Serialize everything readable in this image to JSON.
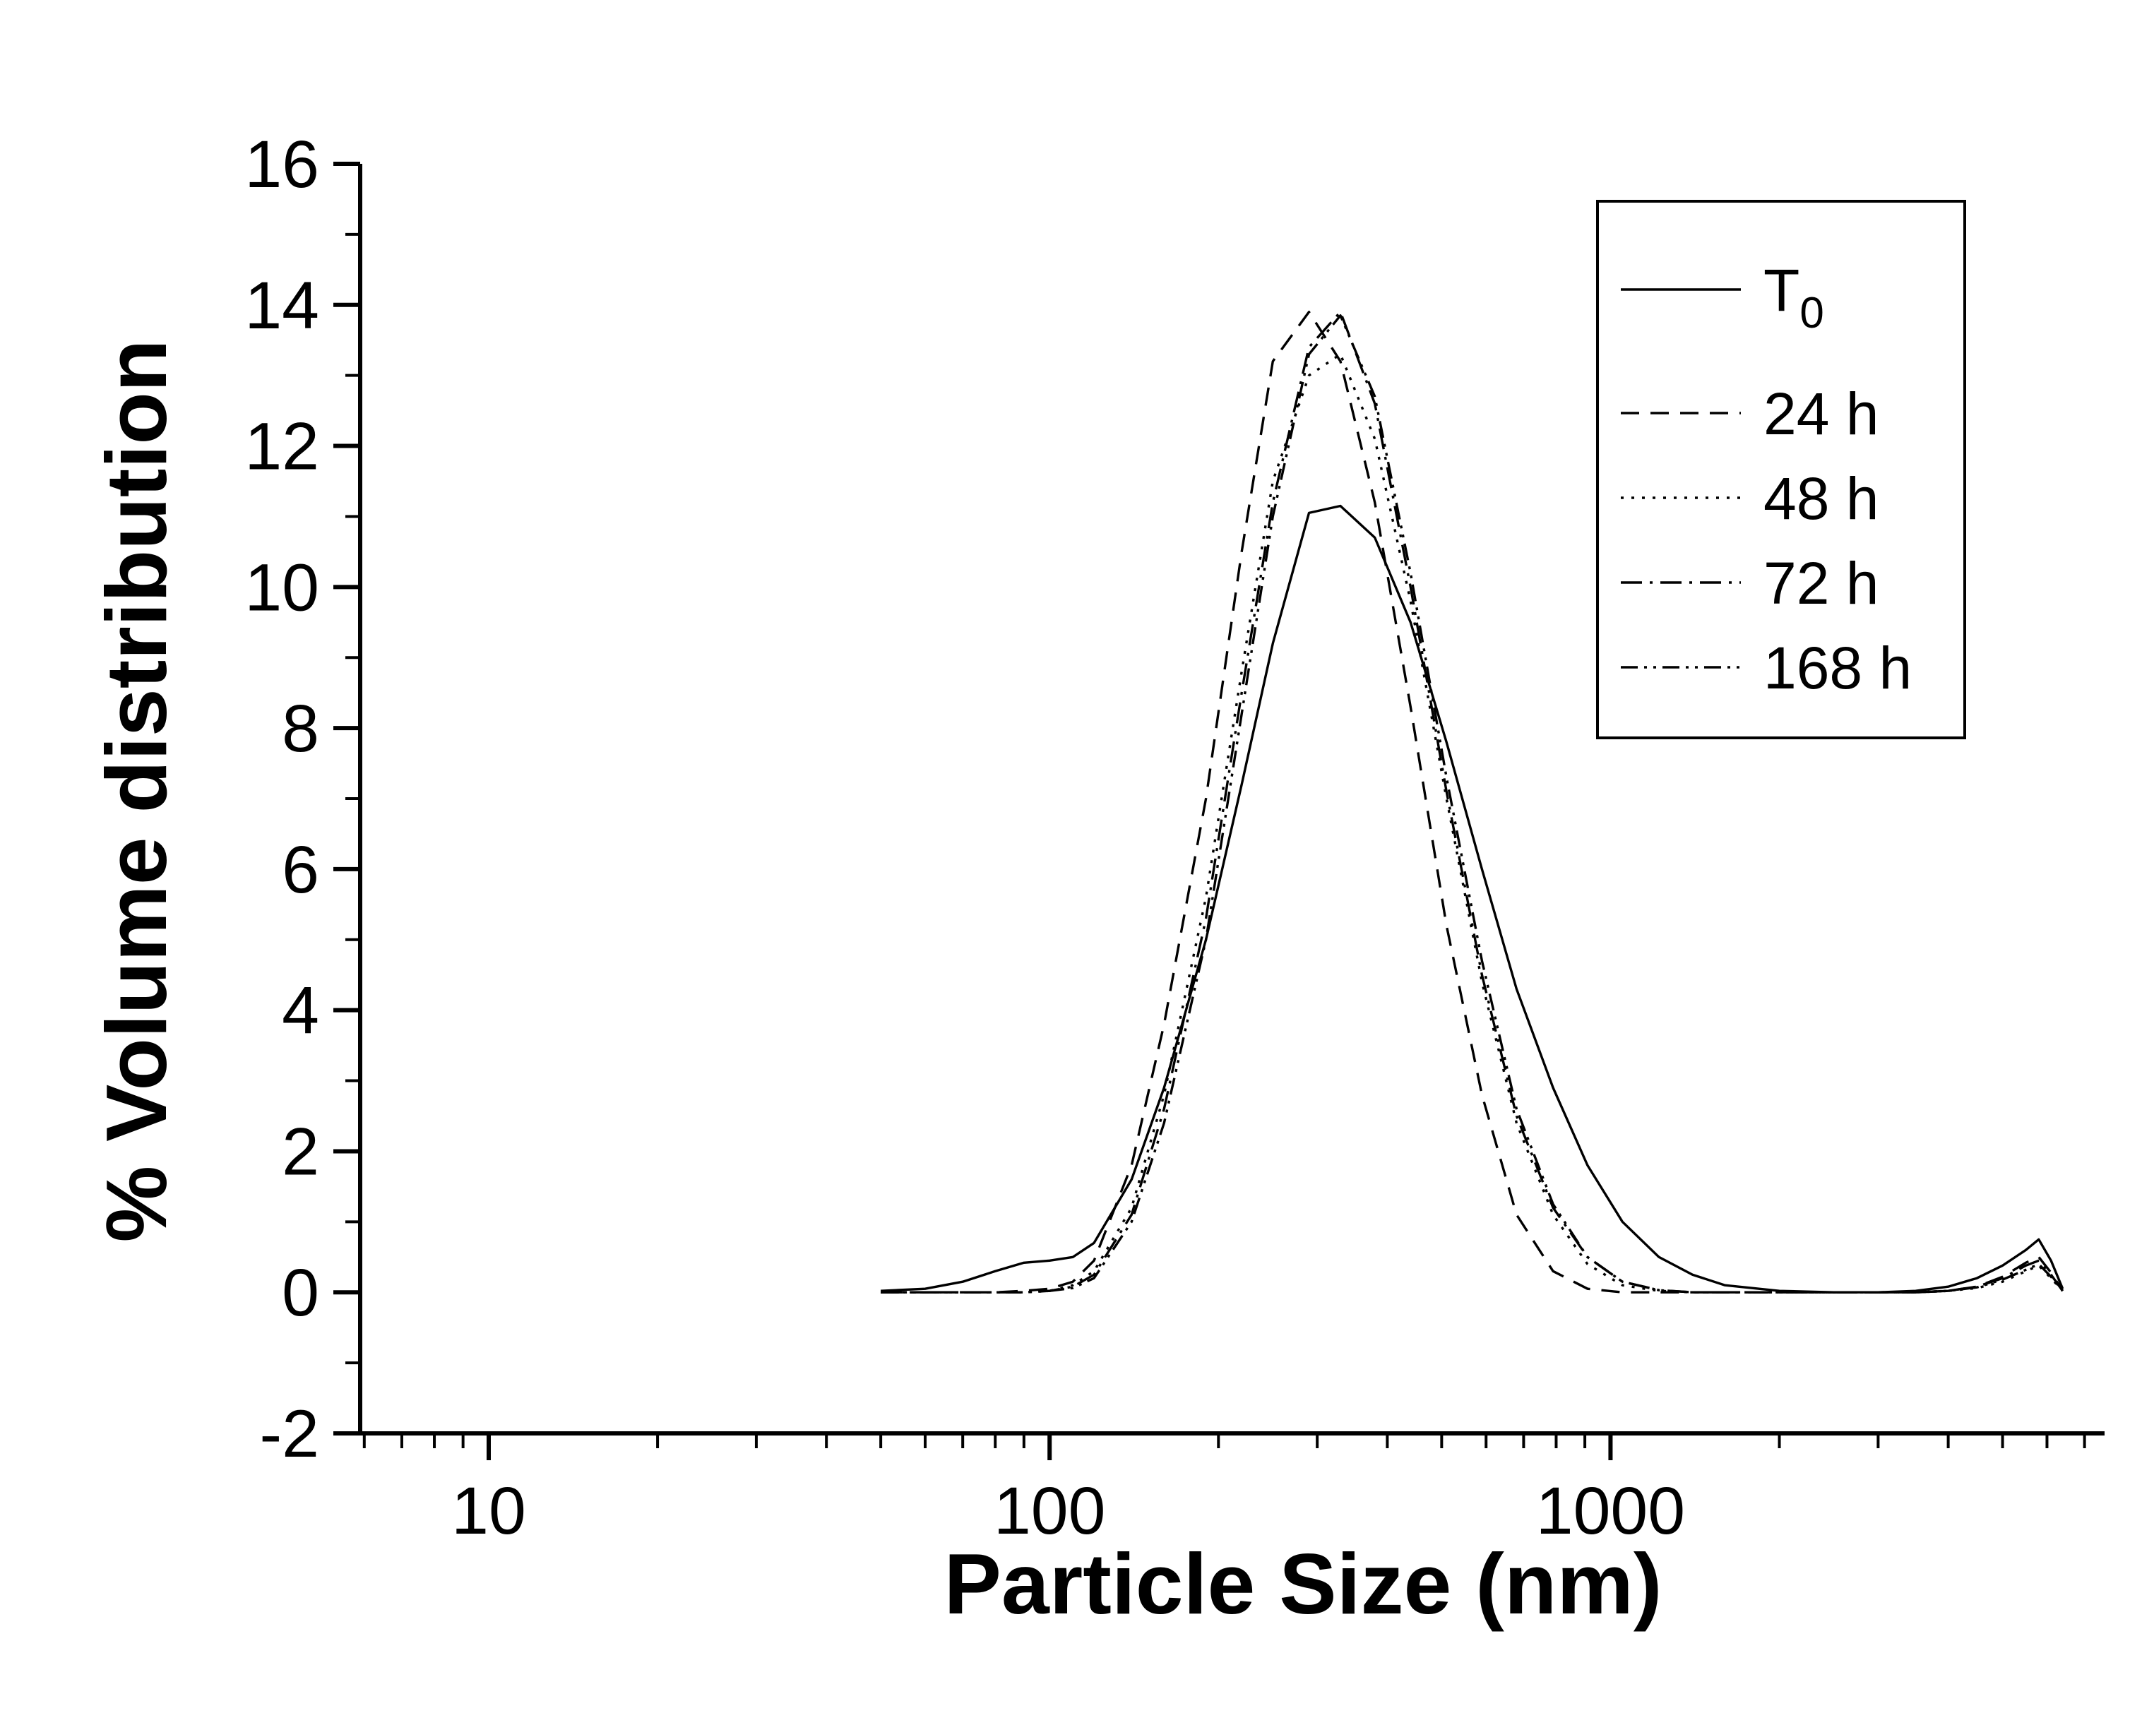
{
  "figure": {
    "background_color": "#ffffff",
    "line_color": "#000000"
  },
  "chart_data": {
    "type": "line",
    "title": "",
    "xlabel": "Particle Size (nm)",
    "ylabel": "% Volume distribution",
    "x_scale": "log",
    "xlim": [
      5.9,
      7600
    ],
    "ylim": [
      -2,
      16
    ],
    "x_major_ticks": [
      {
        "value": 10,
        "label": "10"
      },
      {
        "value": 100,
        "label": "100"
      },
      {
        "value": 1000,
        "label": "1000"
      }
    ],
    "y_major_ticks": [
      -2,
      0,
      2,
      4,
      6,
      8,
      10,
      12,
      14,
      16
    ],
    "grid": false,
    "legend_position": "top-right",
    "x": [
      50,
      60,
      70,
      80,
      90,
      100,
      110,
      120,
      140,
      160,
      190,
      220,
      250,
      290,
      330,
      380,
      440,
      510,
      590,
      680,
      790,
      910,
      1050,
      1220,
      1400,
      1600,
      2000,
      2500,
      3000,
      3500,
      4000,
      4500,
      5000,
      5500,
      5800,
      6100,
      6400
    ],
    "series": [
      {
        "name": "T0",
        "legend_label": "T",
        "legend_sub": "0",
        "line_style": "solid",
        "dash": "",
        "values": [
          0.02,
          0.05,
          0.15,
          0.3,
          0.42,
          0.45,
          0.5,
          0.7,
          1.6,
          2.9,
          5.0,
          7.2,
          9.2,
          11.05,
          11.15,
          10.7,
          9.5,
          7.8,
          6.0,
          4.3,
          2.9,
          1.8,
          1.0,
          0.5,
          0.25,
          0.1,
          0.02,
          0,
          0,
          0.02,
          0.08,
          0.2,
          0.38,
          0.6,
          0.75,
          0.45,
          0.05
        ]
      },
      {
        "name": "24h",
        "legend_label": "24 h",
        "line_style": "dashed",
        "dash": "26 16",
        "values": [
          0,
          0,
          0,
          0,
          0.02,
          0.05,
          0.15,
          0.45,
          1.8,
          3.8,
          7.0,
          10.5,
          13.2,
          13.9,
          13.2,
          11.2,
          8.3,
          5.2,
          2.8,
          1.1,
          0.3,
          0.05,
          0,
          0,
          0,
          0,
          0,
          0,
          0,
          0,
          0.02,
          0.08,
          0.22,
          0.42,
          0.5,
          0.28,
          0.02
        ]
      },
      {
        "name": "48h",
        "legend_label": "48 h",
        "line_style": "dotted",
        "dash": "4 11",
        "values": [
          0,
          0,
          0,
          0,
          0,
          0.02,
          0.1,
          0.3,
          1.2,
          2.8,
          5.6,
          8.8,
          11.5,
          13.0,
          13.3,
          12.1,
          9.8,
          7.0,
          4.4,
          2.4,
          1.1,
          0.4,
          0.1,
          0.02,
          0,
          0,
          0,
          0,
          0,
          0,
          0.02,
          0.06,
          0.15,
          0.3,
          0.38,
          0.2,
          0.02
        ]
      },
      {
        "name": "72h",
        "legend_label": "72 h",
        "line_style": "dash-dot",
        "dash": "30 11 4 11",
        "values": [
          0,
          0,
          0,
          0,
          0,
          0.02,
          0.08,
          0.25,
          1.1,
          2.6,
          5.3,
          8.5,
          11.2,
          13.4,
          13.9,
          12.6,
          10.0,
          7.1,
          4.5,
          2.5,
          1.2,
          0.5,
          0.15,
          0.03,
          0,
          0,
          0,
          0,
          0,
          0,
          0.02,
          0.08,
          0.2,
          0.38,
          0.45,
          0.25,
          0.02
        ]
      },
      {
        "name": "168h",
        "legend_label": "168 h",
        "line_style": "dash-dot-dot",
        "dash": "24 9 4 9 4 9",
        "values": [
          0,
          0,
          0,
          0,
          0,
          0.02,
          0.06,
          0.2,
          1.0,
          2.4,
          5.0,
          8.2,
          11.0,
          13.3,
          13.85,
          12.7,
          10.2,
          7.3,
          4.7,
          2.6,
          1.25,
          0.5,
          0.15,
          0.03,
          0,
          0,
          0,
          0,
          0,
          0,
          0.02,
          0.07,
          0.18,
          0.32,
          0.4,
          0.22,
          0.02
        ]
      }
    ]
  }
}
